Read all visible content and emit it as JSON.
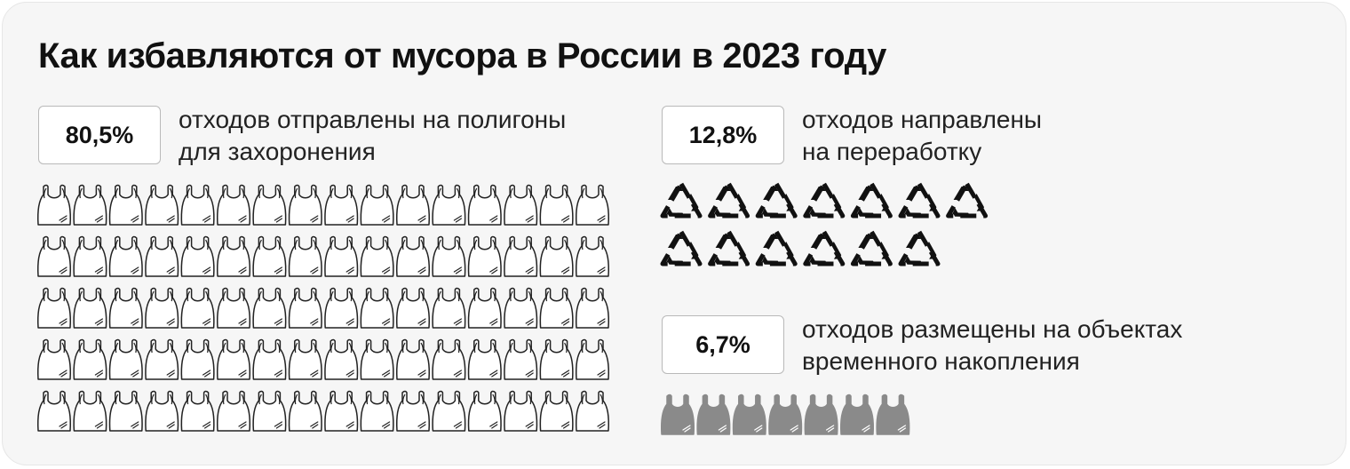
{
  "title": "Как избавляются от мусора в России в 2023 году",
  "chart_data": {
    "type": "pictogram",
    "title": "Как избавляются от мусора в России в 2023 году",
    "series": [
      {
        "value_label": "80,5%",
        "value": 80.5,
        "unit": "%",
        "description": [
          "отходов отправлены на полигоны",
          "для захоронения"
        ],
        "icon": "plastic-bag-outline-icon",
        "icon_color": "#222222",
        "icon_count": 80
      },
      {
        "value_label": "12,8%",
        "value": 12.8,
        "unit": "%",
        "description": [
          "отходов направлены",
          "на переработку"
        ],
        "icon": "recycle-icon",
        "icon_color": "#111111",
        "icon_count": 13
      },
      {
        "value_label": "6,7%",
        "value": 6.7,
        "unit": "%",
        "description": [
          "отходов размещены на объектах",
          "временного накопления"
        ],
        "icon": "plastic-bag-filled-icon",
        "icon_color": "#8a8a8a",
        "icon_count": 7
      }
    ]
  }
}
